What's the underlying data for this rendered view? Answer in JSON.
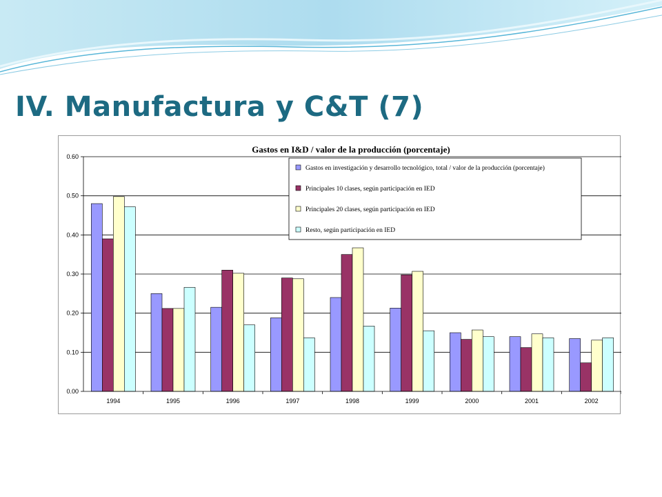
{
  "slide": {
    "title": "IV. Manufactura y C&T (7)"
  },
  "chart_data": {
    "type": "bar",
    "title": "Gastos en I&D / valor de la producción (porcentaje)",
    "xlabel": "",
    "ylabel": "",
    "categories": [
      "1994",
      "1995",
      "1996",
      "1997",
      "1998",
      "1999",
      "2000",
      "2001",
      "2002"
    ],
    "yticks": [
      "0.00",
      "0.10",
      "0.20",
      "0.30",
      "0.40",
      "0.50",
      "0.60"
    ],
    "ylim": [
      0,
      0.6
    ],
    "grid": true,
    "legend_position": "top-right",
    "series": [
      {
        "name": "Gastos en investigación y desarrollo tecnológico, total / valor de la producción (porcentaje)",
        "color": "#9999ff",
        "values": [
          0.48,
          0.25,
          0.215,
          0.188,
          0.24,
          0.213,
          0.15,
          0.14,
          0.135
        ]
      },
      {
        "name": "Principales 10 clases, según participación en IED",
        "color": "#993366",
        "values": [
          0.39,
          0.212,
          0.31,
          0.29,
          0.35,
          0.298,
          0.133,
          0.112,
          0.073
        ]
      },
      {
        "name": "Principales 20 clases, según participación en IED",
        "color": "#ffffcc",
        "values": [
          0.498,
          0.212,
          0.302,
          0.288,
          0.367,
          0.307,
          0.157,
          0.147,
          0.131
        ]
      },
      {
        "name": "Resto, según participación en IED",
        "color": "#ccffff",
        "values": [
          0.472,
          0.266,
          0.17,
          0.137,
          0.167,
          0.155,
          0.14,
          0.137,
          0.137
        ]
      }
    ]
  }
}
